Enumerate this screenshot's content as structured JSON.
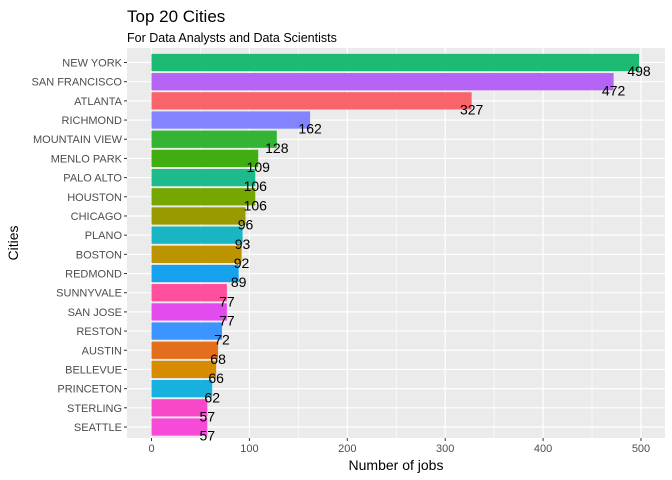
{
  "chart_data": {
    "type": "bar",
    "orientation": "horizontal",
    "title": "Top 20 Cities",
    "subtitle": "For Data Analysts and Data Scientists",
    "xlabel": "Number of jobs",
    "ylabel": "Cities",
    "xlim": [
      0,
      500
    ],
    "xticks": [
      0,
      100,
      200,
      300,
      400,
      500
    ],
    "grid": true,
    "legend": "none",
    "categories": [
      "NEW YORK",
      "SAN FRANCISCO",
      "ATLANTA",
      "RICHMOND",
      "MOUNTAIN VIEW",
      "MENLO PARK",
      "PALO ALTO",
      "HOUSTON",
      "CHICAGO",
      "PLANO",
      "BOSTON",
      "REDMOND",
      "SUNNYVALE",
      "SAN JOSE",
      "RESTON",
      "AUSTIN",
      "BELLEVUE",
      "PRINCETON",
      "STERLING",
      "SEATTLE"
    ],
    "values": [
      498,
      472,
      327,
      162,
      128,
      109,
      106,
      106,
      96,
      93,
      92,
      89,
      77,
      77,
      72,
      68,
      66,
      62,
      57,
      57
    ],
    "colors": [
      "#1DBA74",
      "#B563F5",
      "#F8646A",
      "#8383FF",
      "#33B433",
      "#40AE10",
      "#1DBB8B",
      "#76A600",
      "#999A00",
      "#1AB5C2",
      "#BB9400",
      "#17A2F0",
      "#FF4F9C",
      "#E34BEF",
      "#3C94FF",
      "#E36E1B",
      "#D68B00",
      "#17B1DF",
      "#F848C9",
      "#F84AD8"
    ]
  }
}
